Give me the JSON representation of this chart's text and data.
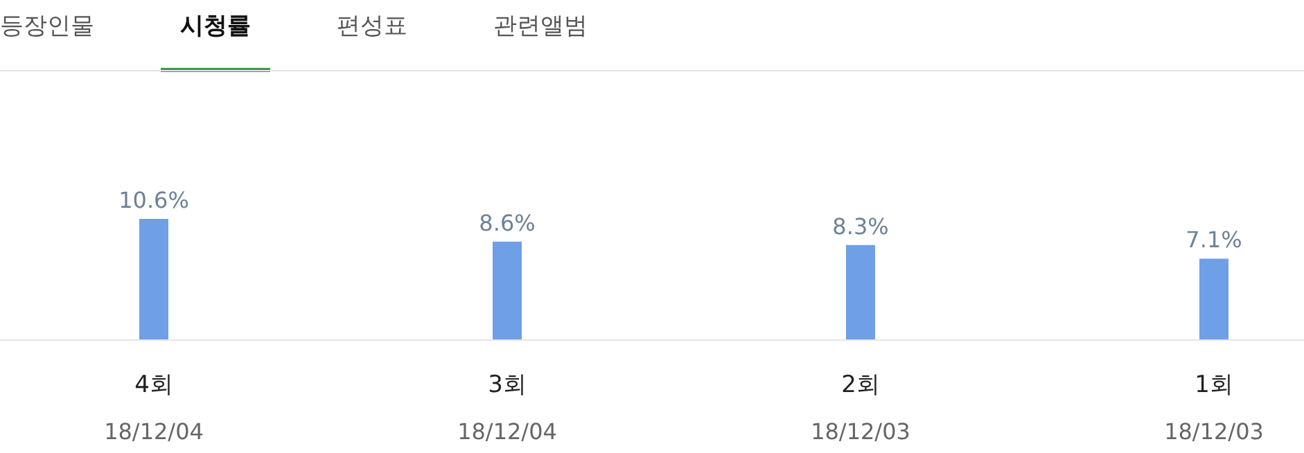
{
  "chart_data": {
    "type": "bar",
    "title": "시청률",
    "annotations": [
      "등장인물",
      "편성표",
      "관련앨범"
    ],
    "categories": [
      "4회\n18/12/04",
      "3회\n18/12/04",
      "2회\n18/12/03",
      "1회\n18/12/03"
    ],
    "values": [
      10.6,
      8.6,
      8.3,
      7.1
    ],
    "value_labels": [
      "10.6%",
      "8.6%",
      "8.3%",
      "7.1%"
    ],
    "color": "#6f9fe6"
  }
}
